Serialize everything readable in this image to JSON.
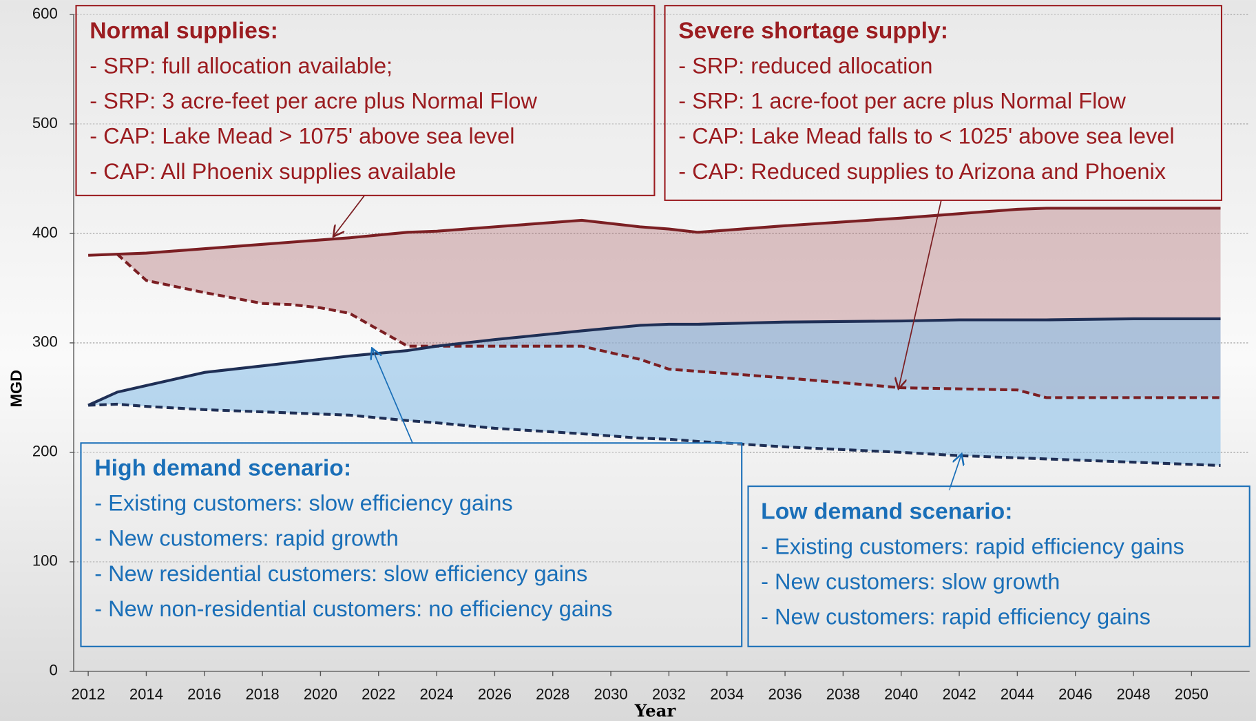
{
  "chart_data": {
    "type": "line",
    "x_label": "Year",
    "y_label": "MGD",
    "x": [
      2012,
      2013,
      2014,
      2016,
      2018,
      2019,
      2020,
      2021,
      2023,
      2024,
      2026,
      2029,
      2031,
      2032,
      2033,
      2036,
      2040,
      2042,
      2044,
      2045,
      2048,
      2051
    ],
    "series": [
      {
        "color": "#7b1f23",
        "fill": "rgba(165,85,92,0.33)",
        "dash": false,
        "values": [
          380,
          381,
          382,
          386,
          390,
          392,
          394,
          396,
          401,
          402,
          406,
          412,
          406,
          404,
          401,
          407,
          414,
          418,
          422,
          423,
          423,
          423
        ]
      },
      {
        "color": "#7b1f23",
        "dash": true,
        "values": [
          null,
          381,
          357,
          346,
          336,
          335,
          332,
          327,
          297,
          297,
          297,
          297,
          285,
          276,
          274,
          268,
          259,
          258,
          257,
          250,
          250,
          250
        ]
      },
      {
        "color": "#1f2f55",
        "fill": "rgba(140,192,232,0.6)",
        "dash": false,
        "values": [
          243,
          255,
          261,
          273,
          279,
          282,
          285,
          288,
          293,
          297,
          303,
          311,
          316,
          317,
          317,
          319,
          320,
          321,
          321,
          321,
          322,
          322
        ]
      },
      {
        "color": "#1f2f55",
        "dash": true,
        "values": [
          243,
          244,
          242,
          239,
          237,
          236,
          235,
          234,
          229,
          227,
          222,
          217,
          213,
          212,
          210,
          205,
          200,
          197,
          195,
          194,
          191,
          188
        ]
      }
    ],
    "xlim": [
      2011.5,
      2052
    ],
    "xticks": [
      2012,
      2014,
      2016,
      2018,
      2020,
      2022,
      2024,
      2026,
      2028,
      2030,
      2032,
      2034,
      2036,
      2038,
      2040,
      2042,
      2044,
      2046,
      2048,
      2050
    ],
    "ylim": [
      0,
      600
    ],
    "yticks": [
      0,
      100,
      200,
      300,
      400,
      500,
      600
    ],
    "grid": true,
    "annotations": [
      {
        "color": "#9b1c20",
        "title": "Normal supplies:",
        "lines": [
          "- SRP: full allocation available;",
          "- SRP: 3 acre-feet per acre plus Normal Flow",
          "- CAP: Lake Mead > 1075' above sea level",
          "- CAP: All Phoenix supplies available"
        ]
      },
      {
        "color": "#9b1c20",
        "title": "Severe shortage supply:",
        "lines": [
          "- SRP: reduced allocation",
          "- SRP: 1 acre-foot per acre plus Normal Flow",
          "- CAP: Lake Mead falls to < 1025' above sea level",
          "- CAP: Reduced supplies to Arizona and Phoenix"
        ]
      },
      {
        "color": "#1a6fb8",
        "title": "High demand scenario:",
        "lines": [
          "- Existing customers: slow efficiency gains",
          "- New customers: rapid growth",
          "- New residential customers: slow efficiency gains",
          "- New non-residential customers: no efficiency gains"
        ]
      },
      {
        "color": "#1a6fb8",
        "title": "Low demand scenario:",
        "lines": [
          "- Existing customers: rapid efficiency gains",
          "- New customers: slow growth",
          "- New customers: rapid efficiency gains"
        ]
      }
    ]
  }
}
